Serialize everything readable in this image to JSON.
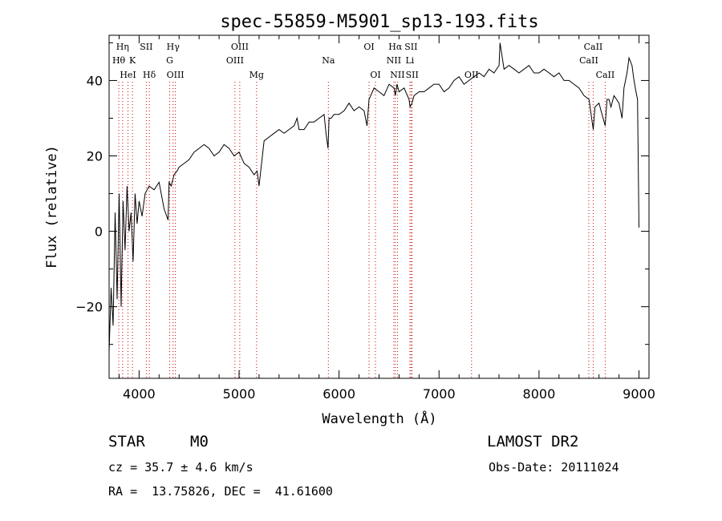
{
  "chart_data": {
    "type": "line",
    "title": "spec-55859-M5901_sp13-193.fits",
    "xlabel": "Wavelength (Å)",
    "ylabel": "Flux (relative)",
    "xlim": [
      3700,
      9100
    ],
    "ylim": [
      -39,
      52
    ],
    "x_ticks": [
      4000,
      5000,
      6000,
      7000,
      8000,
      9000
    ],
    "y_ticks": [
      -20,
      0,
      20,
      40
    ],
    "grid": false,
    "series": [
      {
        "x": [
          3700,
          3720,
          3740,
          3760,
          3780,
          3800,
          3820,
          3840,
          3860,
          3880,
          3900,
          3920,
          3940,
          3960,
          3980,
          4000,
          4030,
          4060,
          4100,
          4150,
          4200,
          4250,
          4290,
          4300,
          4320,
          4350,
          4380,
          4400,
          4450,
          4500,
          4550,
          4600,
          4650,
          4700,
          4750,
          4800,
          4850,
          4900,
          4950,
          5000,
          5050,
          5100,
          5150,
          5180,
          5200,
          5250,
          5300,
          5350,
          5400,
          5450,
          5500,
          5550,
          5580,
          5600,
          5650,
          5700,
          5750,
          5800,
          5850,
          5870,
          5890,
          5900,
          5920,
          5950,
          6000,
          6050,
          6100,
          6150,
          6200,
          6250,
          6280,
          6300,
          6350,
          6400,
          6450,
          6500,
          6550,
          6563,
          6580,
          6600,
          6650,
          6700,
          6710,
          6730,
          6750,
          6800,
          6850,
          6900,
          6950,
          7000,
          7050,
          7100,
          7150,
          7200,
          7250,
          7300,
          7350,
          7400,
          7450,
          7500,
          7550,
          7600,
          7610,
          7650,
          7700,
          7750,
          7800,
          7850,
          7900,
          7950,
          8000,
          8050,
          8100,
          8150,
          8200,
          8250,
          8300,
          8350,
          8400,
          8450,
          8500,
          8542,
          8560,
          8600,
          8620,
          8662,
          8680,
          8700,
          8720,
          8750,
          8800,
          8830,
          8850,
          8880,
          8900,
          8930,
          8950,
          8970,
          8985,
          9000
        ],
        "y": [
          -32,
          -15,
          -25,
          5,
          -18,
          10,
          -20,
          8,
          -5,
          12,
          0,
          5,
          -8,
          10,
          2,
          8,
          4,
          10,
          12,
          11,
          13,
          6,
          3,
          13,
          12,
          15,
          16,
          17,
          18,
          19,
          21,
          22,
          23,
          22,
          20,
          21,
          23,
          22,
          20,
          21,
          18,
          17,
          15,
          16,
          12,
          24,
          25,
          26,
          27,
          26,
          27,
          28,
          30,
          27,
          27,
          29,
          29,
          30,
          31,
          26,
          22,
          30,
          30,
          31,
          31,
          32,
          34,
          32,
          33,
          32,
          28,
          35,
          38,
          37,
          36,
          39,
          38,
          36,
          39,
          37,
          38,
          35,
          33,
          34,
          36,
          37,
          37,
          38,
          39,
          39,
          37,
          38,
          40,
          41,
          39,
          40,
          41,
          42,
          41,
          43,
          42,
          44,
          50,
          43,
          44,
          43,
          42,
          43,
          44,
          42,
          42,
          43,
          42,
          41,
          42,
          40,
          40,
          39,
          38,
          36,
          35,
          27,
          33,
          34,
          32,
          28,
          35,
          35,
          33,
          36,
          34,
          30,
          38,
          42,
          46,
          44,
          40,
          37,
          35,
          1
        ]
      }
    ],
    "line_markers": [
      {
        "name": "Hη",
        "wl": 3835,
        "row": 0
      },
      {
        "name": "Hθ",
        "wl": 3797,
        "row": 1
      },
      {
        "name": "HeI",
        "wl": 3889,
        "row": 2
      },
      {
        "name": "SII",
        "wl": 4072,
        "row": 0
      },
      {
        "name": "K",
        "wl": 3934,
        "row": 1
      },
      {
        "name": "Hδ",
        "wl": 4102,
        "row": 2
      },
      {
        "name": "Hγ",
        "wl": 4340,
        "row": 0
      },
      {
        "name": "G",
        "wl": 4306,
        "row": 1
      },
      {
        "name": "OIII",
        "wl": 4363,
        "row": 2
      },
      {
        "name": "OIII",
        "wl": 5007,
        "row": 0
      },
      {
        "name": "OIII",
        "wl": 4959,
        "row": 1
      },
      {
        "name": "Mg",
        "wl": 5175,
        "row": 2
      },
      {
        "name": "Na",
        "wl": 5893,
        "row": 1
      },
      {
        "name": "OI",
        "wl": 6300,
        "row": 0
      },
      {
        "name": "OI",
        "wl": 6364,
        "row": 2
      },
      {
        "name": "Hα",
        "wl": 6563,
        "row": 0
      },
      {
        "name": "SII",
        "wl": 6720,
        "row": 0
      },
      {
        "name": "NII",
        "wl": 6548,
        "row": 1
      },
      {
        "name": "Li",
        "wl": 6708,
        "row": 1
      },
      {
        "name": "NII",
        "wl": 6584,
        "row": 2
      },
      {
        "name": "SII",
        "wl": 6731,
        "row": 2
      },
      {
        "name": "OII",
        "wl": 7325,
        "row": 2
      },
      {
        "name": "CaII",
        "wl": 8542,
        "row": 0
      },
      {
        "name": "CaII",
        "wl": 8498,
        "row": 1
      },
      {
        "name": "CaII",
        "wl": 8662,
        "row": 2
      }
    ],
    "marker_color": "#cc0000"
  },
  "info": {
    "object_class": "STAR",
    "subclass": "M0",
    "survey": "LAMOST DR2",
    "cz": "cz = 35.7 ± 4.6 km/s",
    "obs_date": "Obs-Date: 20111024",
    "coords": "RA =  13.75826, DEC =  41.61600"
  }
}
